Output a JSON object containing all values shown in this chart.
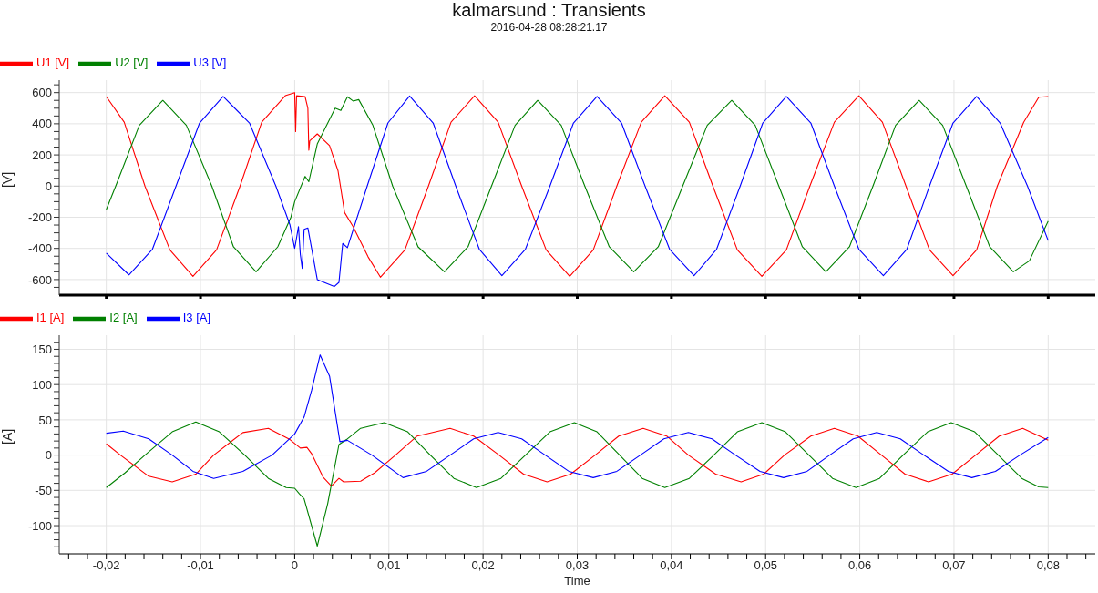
{
  "chart_data": [
    {
      "type": "line",
      "title": "kalmarsund : Transients",
      "subtitle": "2016-04-28 08:28:21.17",
      "ylabel": "[V]",
      "xlim": [
        -0.025,
        0.085
      ],
      "ylim": [
        -700,
        680
      ],
      "tick_labels": "y",
      "grid": true,
      "legend": "top left",
      "marker": "none",
      "line_style": "solid",
      "xticks": [
        {
          "value": -0.02,
          "label": null
        },
        {
          "value": -0.01,
          "label": null
        },
        {
          "value": 0,
          "label": null
        },
        {
          "value": 0.01,
          "label": null
        },
        {
          "value": 0.02,
          "label": null
        },
        {
          "value": 0.03,
          "label": null
        },
        {
          "value": 0.04,
          "label": null
        },
        {
          "value": 0.05,
          "label": null
        },
        {
          "value": 0.06,
          "label": null
        },
        {
          "value": 0.07,
          "label": null
        },
        {
          "value": 0.08,
          "label": null
        }
      ],
      "yticks": [
        {
          "value": -650,
          "label": null
        },
        -600,
        {
          "value": -550,
          "label": null
        },
        {
          "value": -500,
          "label": null
        },
        {
          "value": -450,
          "label": null
        },
        -400,
        {
          "value": -350,
          "label": null
        },
        {
          "value": -300,
          "label": null
        },
        {
          "value": -250,
          "label": null
        },
        -200,
        {
          "value": -150,
          "label": null
        },
        {
          "value": -100,
          "label": null
        },
        {
          "value": -50,
          "label": null
        },
        0,
        {
          "value": 50,
          "label": null
        },
        {
          "value": 100,
          "label": null
        },
        {
          "value": 150,
          "label": null
        },
        200,
        {
          "value": 250,
          "label": null
        },
        {
          "value": 300,
          "label": null
        },
        {
          "value": 350,
          "label": null
        },
        400,
        {
          "value": 450,
          "label": null
        },
        {
          "value": 500,
          "label": null
        },
        {
          "value": 550,
          "label": null
        },
        600,
        {
          "value": 650,
          "label": null
        }
      ],
      "series": [
        {
          "name": "U1 [V]",
          "color": "#ff0000",
          "x": [
            -0.02,
            -0.0181,
            -0.0159,
            -0.01325,
            -0.0108,
            -0.0083,
            -0.0058,
            -0.0035,
            -0.001,
            0,
            0.0001,
            0.0002,
            0.0011,
            0.0014,
            0.0015,
            0.0016,
            0.0024,
            0.0037,
            0.0046,
            0.0053,
            0.0062,
            0.0078,
            0.0091,
            0.0117,
            0.0142,
            0.0166,
            0.0191,
            0.0216,
            0.0241,
            0.0267,
            0.0292,
            0.0317,
            0.0342,
            0.0368,
            0.0393,
            0.0419,
            0.0444,
            0.047,
            0.0496,
            0.0522,
            0.0547,
            0.0573,
            0.0599,
            0.0624,
            0.0649,
            0.0674,
            0.0699,
            0.0724,
            0.0746,
            0.0774,
            0.079,
            0.08
          ],
          "values": [
            575,
            410,
            0,
            -410,
            -580,
            -410,
            0,
            410,
            580,
            600,
            350,
            580,
            575,
            500,
            230,
            290,
            335,
            260,
            98,
            -170,
            -260,
            -455,
            -585,
            -410,
            0,
            410,
            580,
            410,
            0,
            -410,
            -580,
            -410,
            0,
            410,
            580,
            410,
            0,
            -410,
            -580,
            -410,
            0,
            410,
            580,
            410,
            0,
            -410,
            -575,
            -410,
            0,
            410,
            570,
            575
          ]
        },
        {
          "name": "U2 [V]",
          "color": "#008000",
          "x": [
            -0.02,
            -0.019,
            -0.0165,
            -0.014,
            -0.0115,
            -0.0088,
            -0.0065,
            -0.0041,
            -0.0018,
            -0.0004,
            0,
            0.0011,
            0.0015,
            0.0024,
            0.0043,
            0.0049,
            0.0056,
            0.0062,
            0.0068,
            0.0083,
            0.0104,
            0.0131,
            0.0159,
            0.0184,
            0.0209,
            0.0234,
            0.0258,
            0.0283,
            0.0308,
            0.0334,
            0.036,
            0.0386,
            0.0412,
            0.0438,
            0.0464,
            0.0489,
            0.0514,
            0.0539,
            0.0564,
            0.0589,
            0.0614,
            0.0638,
            0.0663,
            0.0688,
            0.0713,
            0.0738,
            0.0763,
            0.078,
            0.08
          ],
          "values": [
            -150,
            0,
            390,
            550,
            390,
            0,
            -390,
            -550,
            -390,
            -200,
            -100,
            62,
            28,
            270,
            500,
            485,
            573,
            546,
            555,
            390,
            0,
            -390,
            -550,
            -390,
            0,
            390,
            550,
            390,
            0,
            -390,
            -550,
            -390,
            0,
            390,
            550,
            390,
            0,
            -390,
            -550,
            -390,
            0,
            390,
            550,
            390,
            0,
            -390,
            -550,
            -480,
            -225
          ]
        },
        {
          "name": "U3 [V]",
          "color": "#0000ff",
          "x": [
            -0.02,
            -0.0176,
            -0.0151,
            -0.0126,
            -0.0101,
            -0.0076,
            -0.0048,
            -0.002,
            -0.0005,
            0,
            0.0001,
            0.0004,
            0.0006,
            0.0008,
            0.001,
            0.0014,
            0.0024,
            0.0042,
            0.0047,
            0.0051,
            0.0056,
            0.0077,
            0.0099,
            0.0122,
            0.0147,
            0.0171,
            0.0196,
            0.022,
            0.0245,
            0.0271,
            0.0296,
            0.0321,
            0.0347,
            0.0372,
            0.0398,
            0.0424,
            0.0448,
            0.0473,
            0.0497,
            0.0522,
            0.0548,
            0.0573,
            0.0599,
            0.0625,
            0.065,
            0.0674,
            0.0699,
            0.0724,
            0.0749,
            0.0778,
            0.08
          ],
          "values": [
            -430,
            -570,
            -405,
            0,
            405,
            575,
            405,
            0,
            -250,
            -400,
            -368,
            -260,
            -440,
            -529,
            -278,
            -269,
            -600,
            -645,
            -618,
            -368,
            -395,
            0,
            405,
            578,
            405,
            0,
            -405,
            -575,
            -405,
            0,
            405,
            575,
            405,
            0,
            -405,
            -575,
            -405,
            0,
            405,
            575,
            405,
            0,
            -405,
            -575,
            -405,
            0,
            405,
            575,
            405,
            0,
            -350
          ]
        }
      ]
    },
    {
      "type": "line",
      "xlabel": "Time",
      "ylabel": "[A]",
      "xlim": [
        -0.025,
        0.085
      ],
      "ylim": [
        -140,
        170
      ],
      "grid": true,
      "legend": "top left",
      "marker": "none",
      "line_style": "solid",
      "xticks": [
        {
          "value": -0.024,
          "label": null
        },
        {
          "value": -0.022,
          "label": null
        },
        {
          "value": -0.02,
          "label": "-0,02"
        },
        {
          "value": -0.018,
          "label": null
        },
        {
          "value": -0.016,
          "label": null
        },
        {
          "value": -0.014,
          "label": null
        },
        {
          "value": -0.012,
          "label": null
        },
        {
          "value": -0.01,
          "label": "-0,01"
        },
        {
          "value": -0.008,
          "label": null
        },
        {
          "value": -0.006,
          "label": null
        },
        {
          "value": -0.004,
          "label": null
        },
        {
          "value": -0.002,
          "label": null
        },
        0,
        {
          "value": 0.002,
          "label": null
        },
        {
          "value": 0.004,
          "label": null
        },
        {
          "value": 0.006,
          "label": null
        },
        {
          "value": 0.008,
          "label": null
        },
        {
          "value": 0.01,
          "label": "0,01"
        },
        {
          "value": 0.012,
          "label": null
        },
        {
          "value": 0.014,
          "label": null
        },
        {
          "value": 0.016,
          "label": null
        },
        {
          "value": 0.018,
          "label": null
        },
        {
          "value": 0.02,
          "label": "0,02"
        },
        {
          "value": 0.022,
          "label": null
        },
        {
          "value": 0.024,
          "label": null
        },
        {
          "value": 0.026,
          "label": null
        },
        {
          "value": 0.028,
          "label": null
        },
        {
          "value": 0.03,
          "label": "0,03"
        },
        {
          "value": 0.032,
          "label": null
        },
        {
          "value": 0.034,
          "label": null
        },
        {
          "value": 0.036,
          "label": null
        },
        {
          "value": 0.038,
          "label": null
        },
        {
          "value": 0.04,
          "label": "0,04"
        },
        {
          "value": 0.042,
          "label": null
        },
        {
          "value": 0.044,
          "label": null
        },
        {
          "value": 0.046,
          "label": null
        },
        {
          "value": 0.048,
          "label": null
        },
        {
          "value": 0.05,
          "label": "0,05"
        },
        {
          "value": 0.052,
          "label": null
        },
        {
          "value": 0.054,
          "label": null
        },
        {
          "value": 0.056,
          "label": null
        },
        {
          "value": 0.058,
          "label": null
        },
        {
          "value": 0.06,
          "label": "0,06"
        },
        {
          "value": 0.062,
          "label": null
        },
        {
          "value": 0.064,
          "label": null
        },
        {
          "value": 0.066,
          "label": null
        },
        {
          "value": 0.068,
          "label": null
        },
        {
          "value": 0.07,
          "label": "0,07"
        },
        {
          "value": 0.072,
          "label": null
        },
        {
          "value": 0.074,
          "label": null
        },
        {
          "value": 0.076,
          "label": null
        },
        {
          "value": 0.078,
          "label": null
        },
        {
          "value": 0.08,
          "label": "0,08"
        },
        {
          "value": 0.082,
          "label": null
        },
        {
          "value": 0.084,
          "label": null
        }
      ],
      "yticks": [
        {
          "value": -130,
          "label": null
        },
        {
          "value": -120,
          "label": null
        },
        {
          "value": -110,
          "label": null
        },
        -100,
        {
          "value": -90,
          "label": null
        },
        {
          "value": -80,
          "label": null
        },
        {
          "value": -70,
          "label": null
        },
        {
          "value": -60,
          "label": null
        },
        -50,
        {
          "value": -40,
          "label": null
        },
        {
          "value": -30,
          "label": null
        },
        {
          "value": -20,
          "label": null
        },
        {
          "value": -10,
          "label": null
        },
        0,
        {
          "value": 10,
          "label": null
        },
        {
          "value": 20,
          "label": null
        },
        {
          "value": 30,
          "label": null
        },
        {
          "value": 40,
          "label": null
        },
        50,
        {
          "value": 60,
          "label": null
        },
        {
          "value": 70,
          "label": null
        },
        {
          "value": 80,
          "label": null
        },
        {
          "value": 90,
          "label": null
        },
        100,
        {
          "value": 110,
          "label": null
        },
        {
          "value": 120,
          "label": null
        },
        {
          "value": 130,
          "label": null
        },
        {
          "value": 140,
          "label": null
        },
        150,
        {
          "value": 160,
          "label": null
        }
      ],
      "series": [
        {
          "name": "I1 [A]",
          "color": "#ff0000",
          "x": [
            -0.02,
            -0.0185,
            -0.0155,
            -0.013,
            -0.0105,
            -0.0086,
            -0.0055,
            -0.0028,
            -0.0005,
            0.0006,
            0.0013,
            0.0018,
            0.003,
            0.0039,
            0.0047,
            0.0052,
            0.007,
            0.0085,
            0.0107,
            0.013,
            0.0165,
            0.019,
            0.0217,
            0.0243,
            0.0268,
            0.0293,
            0.0319,
            0.0344,
            0.037,
            0.0395,
            0.0418,
            0.0447,
            0.0474,
            0.0498,
            0.052,
            0.0548,
            0.0573,
            0.0598,
            0.0623,
            0.0648,
            0.0673,
            0.0698,
            0.0723,
            0.0748,
            0.0773,
            0.08
          ],
          "values": [
            16,
            0,
            -30,
            -38,
            -27,
            0,
            32,
            38,
            22,
            10,
            11,
            2,
            -31,
            -44,
            -33,
            -38,
            -37,
            -25,
            0,
            27,
            38,
            27,
            0,
            -27,
            -38,
            -27,
            0,
            27,
            38,
            27,
            0,
            -27,
            -38,
            -27,
            0,
            27,
            38,
            27,
            0,
            -27,
            -38,
            -27,
            0,
            27,
            38,
            21
          ]
        },
        {
          "name": "I2 [A]",
          "color": "#008000",
          "x": [
            -0.02,
            -0.018,
            -0.0159,
            -0.013,
            -0.0105,
            -0.008,
            -0.0053,
            -0.0028,
            -0.0009,
            0,
            0.0005,
            0.001,
            0.0024,
            0.0035,
            0.0047,
            0.0055,
            0.007,
            0.0095,
            0.012,
            0.0144,
            0.0169,
            0.0193,
            0.0219,
            0.0245,
            0.0271,
            0.0297,
            0.0321,
            0.0345,
            0.0369,
            0.0393,
            0.0419,
            0.0445,
            0.047,
            0.0496,
            0.0521,
            0.0546,
            0.0571,
            0.0596,
            0.0621,
            0.0646,
            0.0672,
            0.0697,
            0.0722,
            0.0747,
            0.0772,
            0.079,
            0.08
          ],
          "values": [
            -46,
            -25,
            0,
            33,
            47,
            33,
            0,
            -33,
            -46,
            -47,
            -55,
            -62,
            -129,
            -69,
            15,
            22,
            38,
            46,
            33,
            0,
            -33,
            -46,
            -33,
            0,
            33,
            46,
            33,
            0,
            -33,
            -46,
            -33,
            0,
            33,
            46,
            33,
            0,
            -33,
            -46,
            -33,
            0,
            33,
            46,
            33,
            0,
            -33,
            -45,
            -46
          ]
        },
        {
          "name": "I3 [A]",
          "color": "#0000ff",
          "x": [
            -0.02,
            -0.0182,
            -0.0155,
            -0.013,
            -0.0108,
            -0.0086,
            -0.0055,
            -0.0024,
            0,
            0.001,
            0.0018,
            0.0027,
            0.0037,
            0.0048,
            0.0056,
            0.0082,
            0.0115,
            0.014,
            0.0165,
            0.019,
            0.0216,
            0.0241,
            0.0266,
            0.0291,
            0.0317,
            0.0342,
            0.0367,
            0.0392,
            0.0418,
            0.0443,
            0.0468,
            0.0494,
            0.0519,
            0.0544,
            0.0568,
            0.0593,
            0.0618,
            0.0643,
            0.0668,
            0.0694,
            0.0719,
            0.0744,
            0.077,
            0.08
          ],
          "values": [
            31,
            34,
            23,
            0,
            -23,
            -33,
            -23,
            0,
            30,
            54,
            92,
            142,
            112,
            19,
            21,
            0,
            -32,
            -23,
            0,
            23,
            32,
            23,
            0,
            -23,
            -32,
            -23,
            0,
            23,
            32,
            23,
            0,
            -23,
            -32,
            -23,
            0,
            23,
            32,
            23,
            0,
            -23,
            -32,
            -23,
            0,
            25
          ]
        }
      ]
    }
  ]
}
